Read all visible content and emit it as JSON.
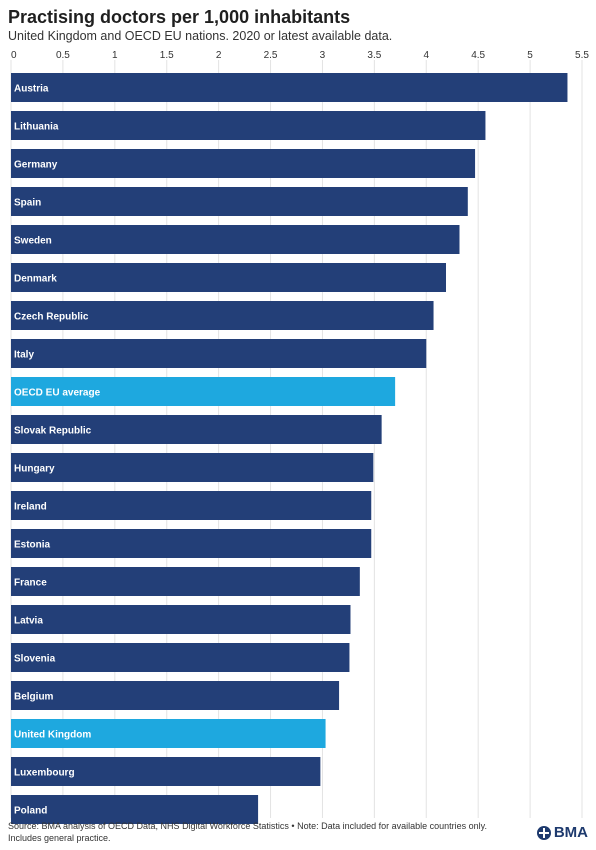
{
  "header": {
    "title": "Practising doctors per 1,000 inhabitants",
    "subtitle": "United Kingdom and OECD EU nations. 2020 or latest available data."
  },
  "footer": {
    "source": "Source: BMA analysis of OECD Data, NHS Digital Workforce Statistics • Note: Data included for available countries only. Includes general practice.",
    "logo_text": "BMA"
  },
  "colors": {
    "bar": "#233f78",
    "highlight": "#1ea8df",
    "grid": "#e3e3e3",
    "label": "#ffffff",
    "tick": "#333333"
  },
  "chart_data": {
    "type": "bar",
    "orientation": "horizontal",
    "x_ticks": [
      "0",
      "0.5",
      "1",
      "1.5",
      "2",
      "2.5",
      "3",
      "3.5",
      "4",
      "4.5",
      "5",
      "5.5"
    ],
    "xlim": [
      0,
      5.5
    ],
    "grid": true,
    "categories": [
      "Austria",
      "Lithuania",
      "Germany",
      "Spain",
      "Sweden",
      "Denmark",
      "Czech Republic",
      "Italy",
      "OECD EU average",
      "Slovak Republic",
      "Hungary",
      "Ireland",
      "Estonia",
      "France",
      "Latvia",
      "Slovenia",
      "Belgium",
      "United Kingdom",
      "Luxembourg",
      "Poland"
    ],
    "values": [
      5.36,
      4.57,
      4.47,
      4.4,
      4.32,
      4.19,
      4.07,
      4.0,
      3.7,
      3.57,
      3.49,
      3.47,
      3.47,
      3.36,
      3.27,
      3.26,
      3.16,
      3.03,
      2.98,
      2.38
    ],
    "highlighted": [
      "OECD EU average",
      "United Kingdom"
    ]
  }
}
